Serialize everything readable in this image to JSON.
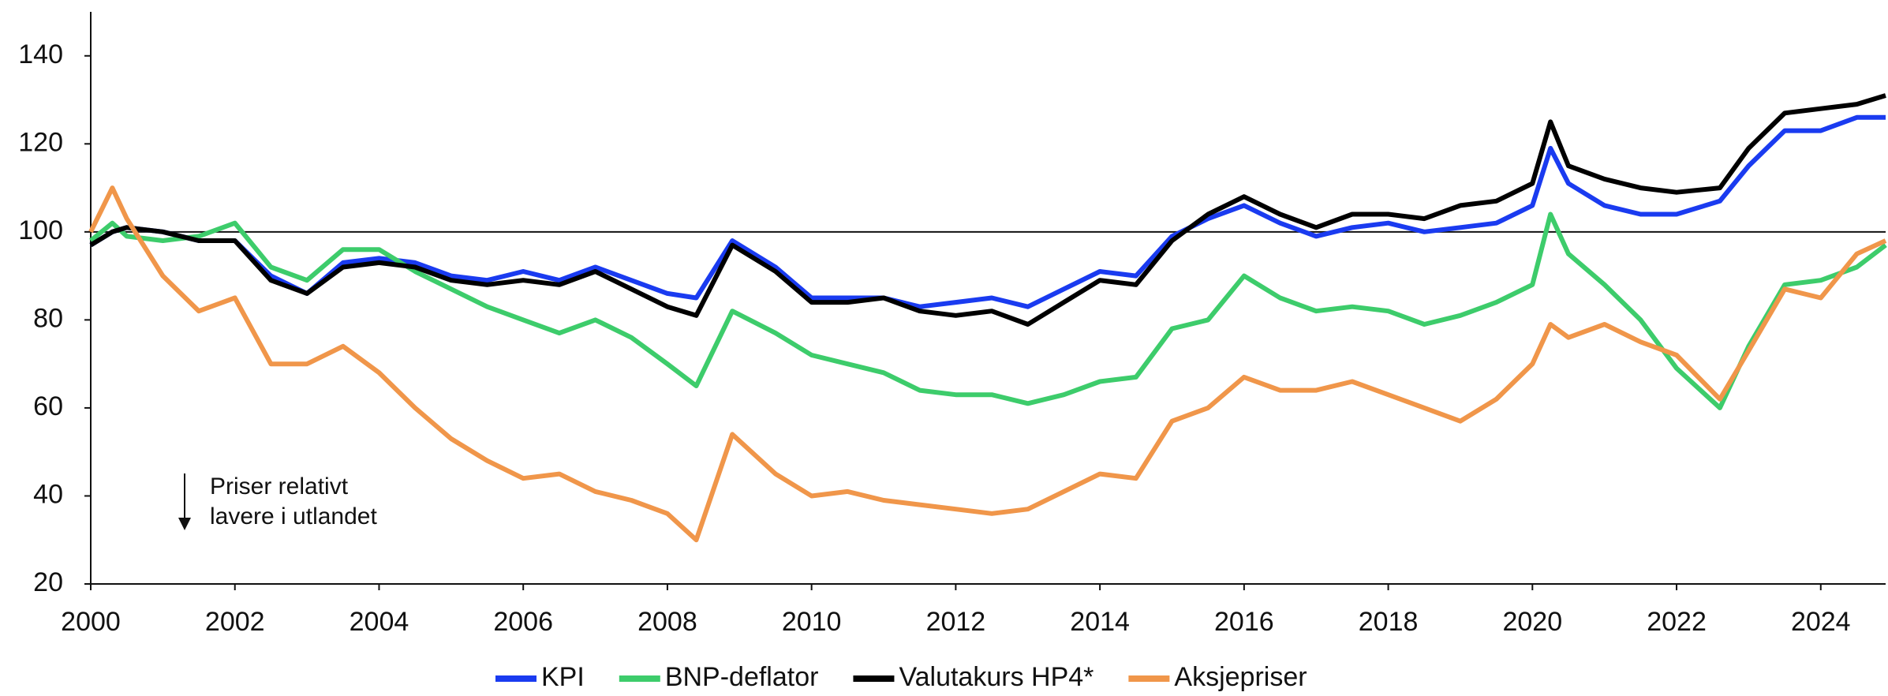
{
  "chart_data": {
    "type": "line",
    "x": [
      2000,
      2000.3,
      2000.5,
      2001,
      2001.5,
      2002,
      2002.5,
      2003,
      2003.5,
      2004,
      2004.5,
      2005,
      2005.5,
      2006,
      2006.5,
      2007,
      2007.5,
      2008,
      2008.4,
      2008.9,
      2009.5,
      2010,
      2010.5,
      2011,
      2011.5,
      2012,
      2012.5,
      2013,
      2013.5,
      2014,
      2014.5,
      2015,
      2015.5,
      2016,
      2016.5,
      2017,
      2017.5,
      2018,
      2018.5,
      2019,
      2019.5,
      2020,
      2020.25,
      2020.5,
      2021,
      2021.5,
      2022,
      2022.6,
      2023,
      2023.5,
      2024,
      2024.5,
      2024.9
    ],
    "series": [
      {
        "name": "KPI",
        "color": "#1a3bf0",
        "values": [
          97,
          100,
          101,
          100,
          98,
          98,
          90,
          86,
          93,
          94,
          93,
          90,
          89,
          91,
          89,
          92,
          89,
          86,
          85,
          98,
          92,
          85,
          85,
          85,
          83,
          84,
          85,
          83,
          87,
          91,
          90,
          99,
          103,
          106,
          102,
          99,
          101,
          102,
          100,
          101,
          102,
          106,
          119,
          111,
          106,
          104,
          104,
          107,
          115,
          123,
          123,
          126,
          126
        ]
      },
      {
        "name": "BNP-deflator",
        "color": "#3dcc6b",
        "values": [
          98,
          102,
          99,
          98,
          99,
          102,
          92,
          89,
          96,
          96,
          91,
          87,
          83,
          80,
          77,
          80,
          76,
          70,
          65,
          82,
          77,
          72,
          70,
          68,
          64,
          63,
          63,
          61,
          63,
          66,
          67,
          78,
          80,
          90,
          85,
          82,
          83,
          82,
          79,
          81,
          84,
          88,
          104,
          95,
          88,
          80,
          69,
          60,
          74,
          88,
          89,
          92,
          97
        ]
      },
      {
        "name": "Valutakurs HP4*",
        "color": "#000000",
        "values": [
          97,
          100,
          101,
          100,
          98,
          98,
          89,
          86,
          92,
          93,
          92,
          89,
          88,
          89,
          88,
          91,
          87,
          83,
          81,
          97,
          91,
          84,
          84,
          85,
          82,
          81,
          82,
          79,
          84,
          89,
          88,
          98,
          104,
          108,
          104,
          101,
          104,
          104,
          103,
          106,
          107,
          111,
          125,
          115,
          112,
          110,
          109,
          110,
          119,
          127,
          128,
          129,
          131
        ]
      },
      {
        "name": "Aksjepriser",
        "color": "#f0964a",
        "values": [
          100,
          110,
          103,
          90,
          82,
          85,
          70,
          70,
          74,
          68,
          60,
          53,
          48,
          44,
          45,
          41,
          39,
          36,
          30,
          54,
          45,
          40,
          41,
          39,
          38,
          37,
          36,
          37,
          41,
          45,
          44,
          57,
          60,
          67,
          64,
          64,
          66,
          63,
          60,
          57,
          62,
          70,
          79,
          76,
          79,
          75,
          72,
          62,
          73,
          87,
          85,
          95,
          98
        ]
      }
    ],
    "xlim": [
      2000,
      2024.9
    ],
    "ylim": [
      20,
      150
    ],
    "xticks": [
      2000,
      2002,
      2004,
      2006,
      2008,
      2010,
      2012,
      2014,
      2016,
      2018,
      2020,
      2022,
      2024
    ],
    "yticks": [
      20,
      40,
      60,
      80,
      100,
      120,
      140
    ],
    "reference_line": 100,
    "annotation": [
      "Priser relativt",
      "lavere i utlandet"
    ],
    "legend": "bottom"
  }
}
